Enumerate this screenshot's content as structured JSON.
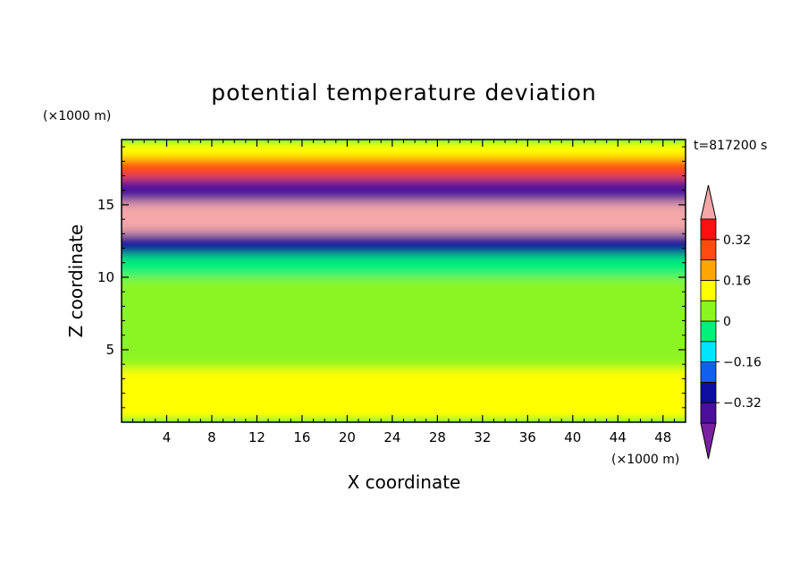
{
  "chart_data": {
    "type": "heatmap",
    "title": "potential temperature deviation",
    "xlabel": "X coordinate",
    "ylabel": "Z coordinate",
    "x_unit": "(×1000 m)",
    "y_unit": "(×1000 m)",
    "time_label": "t=817200 s",
    "xlim": [
      0,
      50
    ],
    "ylim": [
      0,
      19.5
    ],
    "x_ticks": [
      "4",
      "8",
      "12",
      "16",
      "20",
      "24",
      "28",
      "32",
      "36",
      "40",
      "44",
      "48"
    ],
    "y_ticks": [
      "5",
      "10",
      "15"
    ],
    "colorbar": {
      "levels": [
        -0.4,
        -0.32,
        -0.24,
        -0.16,
        -0.08,
        0,
        0.08,
        0.16,
        0.24,
        0.32,
        0.4
      ],
      "tick_labels": [
        "0.32",
        "0.16",
        "0",
        "−0.16",
        "−0.32"
      ],
      "colors": [
        "#7a1fa2",
        "#4b0f9c",
        "#0b0f9c",
        "#1060f0",
        "#00e5ff",
        "#00f07a",
        "#8af520",
        "#ffff00",
        "#ffa500",
        "#ff4a10",
        "#ff1010",
        "#f4a7a7"
      ]
    },
    "bands": [
      {
        "z": [
          18.2,
          19.5
        ],
        "value": 0.1
      },
      {
        "z": [
          16.8,
          18.2
        ],
        "value": 0.3
      },
      {
        "z": [
          15.2,
          16.8
        ],
        "value": -0.35
      },
      {
        "z": [
          13.0,
          15.2
        ],
        "value": 0.45
      },
      {
        "z": [
          11.5,
          13.0
        ],
        "value": -0.3
      },
      {
        "z": [
          10.0,
          11.5
        ],
        "value": -0.05
      },
      {
        "z": [
          3.7,
          10.0
        ],
        "value": 0.05
      },
      {
        "z": [
          0,
          3.7
        ],
        "value": 0.1
      }
    ]
  }
}
